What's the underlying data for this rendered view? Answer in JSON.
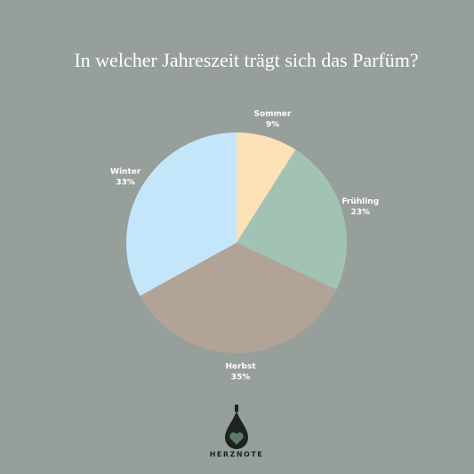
{
  "chart_data": {
    "type": "pie",
    "title": "In welcher Jahreszeit trägt sich das Parfüm?",
    "categories": [
      "Sommer",
      "Frühling",
      "Herbst",
      "Winter"
    ],
    "values": [
      9,
      23,
      35,
      33
    ],
    "value_labels": [
      "9%",
      "23%",
      "35%",
      "33%"
    ],
    "colors": [
      "#fde1b7",
      "#a2c3b4",
      "#b1a396",
      "#c4e6fb"
    ]
  },
  "brand": "HERZNOTE"
}
